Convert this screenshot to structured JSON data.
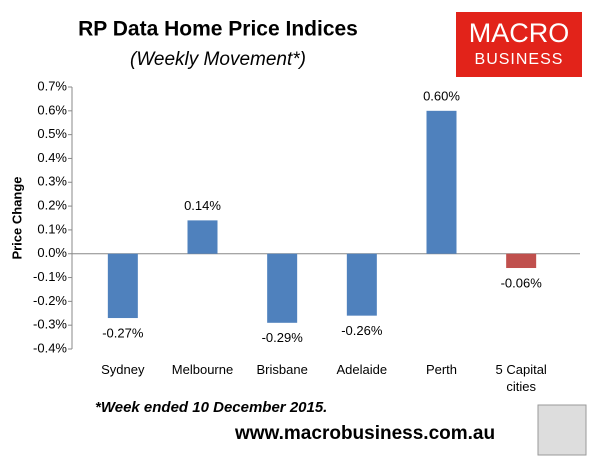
{
  "chart_data": {
    "type": "bar",
    "title": "RP Data Home Price Indices",
    "subtitle": "(Weekly Movement*)",
    "y_label": "Price Change",
    "footnote": "*Week ended 10 December 2015.",
    "source": "www.macrobusiness.com.au",
    "logo": [
      "MACRO",
      "BUSINESS"
    ],
    "categories": [
      "Sydney",
      "Melbourne",
      "Brisbane",
      "Adelaide",
      "Perth",
      "5 Capital cities"
    ],
    "values": [
      -0.27,
      0.14,
      -0.29,
      -0.26,
      0.6,
      -0.06
    ],
    "value_labels": [
      "-0.27%",
      "0.14%",
      "-0.29%",
      "-0.26%",
      "0.60%",
      "-0.06%"
    ],
    "colors": [
      "#4f81bd",
      "#4f81bd",
      "#4f81bd",
      "#4f81bd",
      "#4f81bd",
      "#c0504d"
    ],
    "ylim": [
      -0.4,
      0.7
    ],
    "yticks": [
      {
        "value": -0.4,
        "label": "-0.4%"
      },
      {
        "value": -0.3,
        "label": "-0.3%"
      },
      {
        "value": -0.2,
        "label": "-0.2%"
      },
      {
        "value": -0.1,
        "label": "-0.1%"
      },
      {
        "value": 0,
        "label": "0.0%"
      },
      {
        "value": 0.1,
        "label": "0.1%"
      },
      {
        "value": 0.2,
        "label": "0.2%"
      },
      {
        "value": 0.3,
        "label": "0.3%"
      },
      {
        "value": 0.4,
        "label": "0.4%"
      },
      {
        "value": 0.5,
        "label": "0.5%"
      },
      {
        "value": 0.6,
        "label": "0.6%"
      },
      {
        "value": 0.7,
        "label": "0.7%"
      }
    ],
    "grid": false
  }
}
